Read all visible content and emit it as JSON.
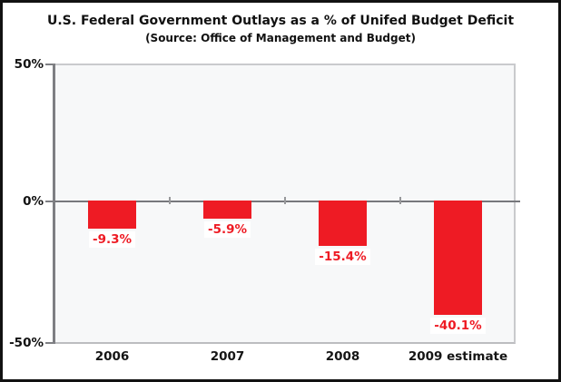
{
  "header": {
    "title": "U.S. Federal Government Outlays as a % of Unifed Budget Deficit",
    "subtitle": "(Source: Office of Management and Budget)"
  },
  "chart_data": {
    "type": "bar",
    "categories": [
      "2006",
      "2007",
      "2008",
      "2009 estimate"
    ],
    "values": [
      -9.3,
      -5.9,
      -15.4,
      -40.1
    ],
    "bar_labels": [
      "-9.3%",
      "-5.9%",
      "-15.4%",
      "-40.1%"
    ],
    "title": "U.S. Federal Government Outlays as a % of Unifed Budget Deficit",
    "subtitle": "(Source: Office of Management and Budget)",
    "xlabel": "",
    "ylabel": "",
    "ylim": [
      -50,
      50
    ],
    "y_tick_labels": [
      "50%",
      "0%",
      "-50%"
    ],
    "grid": false,
    "legend": null,
    "bar_color": "#ee1b24",
    "value_label_color": "#ee1b24"
  }
}
